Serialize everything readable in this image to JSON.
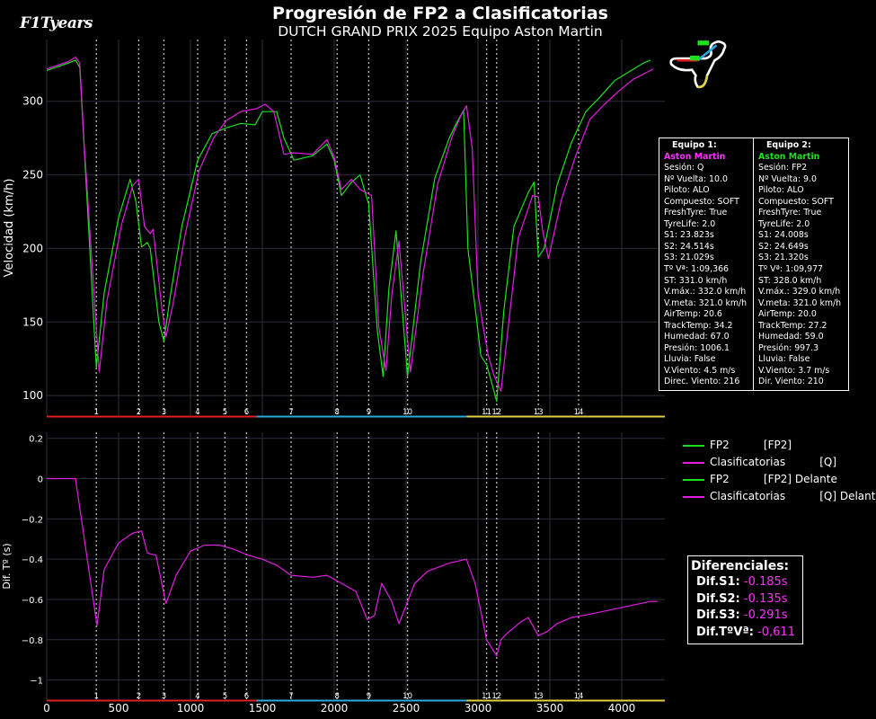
{
  "header": {
    "title": "Progresión de FP2 a Clasificatorias",
    "subtitle": "DUTCH GRAND PRIX 2025 Equipo Aston Martin",
    "logo_text": "F1Tyears"
  },
  "colors": {
    "fp2": "#1ee01e",
    "quali": "#e11de1",
    "sector1": "#e02020",
    "sector2": "#2aa8e0",
    "sector3": "#e0d040",
    "grid": "#2a2f3a",
    "corner_line": "#bbbbbb"
  },
  "corners": {
    "labels": [
      "1",
      "2",
      "3",
      "4",
      "5",
      "6",
      "7",
      "8",
      "9",
      "10",
      "11",
      "12",
      "13",
      "14"
    ],
    "distances": [
      345,
      640,
      815,
      1050,
      1240,
      1390,
      1700,
      2020,
      2240,
      2510,
      3060,
      3130,
      3420,
      3700
    ]
  },
  "sectors": {
    "s1_end": 1460,
    "s2_end": 2920
  },
  "info_team1": {
    "header": "Equipo 1:",
    "team": "Aston Martin",
    "lines": [
      "Sesión: Q",
      "Nº Vuelta: 10.0",
      "Piloto: ALO",
      "Compuesto: SOFT",
      "FreshTyre: True",
      "TyreLife: 2.0",
      "S1: 23.823s",
      "S2: 24.514s",
      "S3: 21.029s",
      "Tº Vª: 1:09,366",
      "ST: 331.0 km/h",
      "V.máx.: 332.0 km/h",
      "V.meta: 321.0 km/h",
      "AirTemp: 20.6",
      "TrackTemp: 34.2",
      "Humedad: 67.0",
      "Presión: 1006.1",
      "Lluvia: False",
      "V.Viento: 4.5 m/s",
      "Direc. Viento: 216"
    ]
  },
  "info_team2": {
    "header": "Equipo 2:",
    "team": "Aston Martin",
    "lines": [
      "Sesión: FP2",
      "Nº Vuelta: 9.0",
      "Piloto: ALO",
      "Compuesto: SOFT",
      "FreshTyre: True",
      "TyreLife: 2.0",
      "S1: 24.008s",
      "S2: 24.649s",
      "S3: 21.320s",
      "Tº Vª: 1:09,977",
      "ST: 328.0 km/h",
      "V.máx.: 329.0 km/h",
      "V.meta: 321.0 km/h",
      "AirTemp: 20.0",
      "TrackTemp: 27.2",
      "Humedad: 59.0",
      "Presión: 997.3",
      "Lluvia: False",
      "V.Viento: 3.7 m/s",
      "Dir. Viento: 210"
    ]
  },
  "legend": [
    {
      "label": "FP2          [FP2]",
      "color": "#1ee01e"
    },
    {
      "label": "Clasificatorias          [Q]",
      "color": "#e11de1"
    },
    {
      "label": "FP2          [FP2] Delante",
      "color": "#1ee01e"
    },
    {
      "label": "Clasificatorias          [Q] Delante",
      "color": "#e11de1"
    }
  ],
  "diferenciales": {
    "title": "Diferenciales:",
    "s1_label": "Dif.S1:",
    "s1_value": "-0.185s",
    "s2_label": "Dif.S2:",
    "s2_value": "-0.135s",
    "s3_label": "Dif.S3:",
    "s3_value": "-0.291s",
    "tv_label": "Dif.TºVª:",
    "tv_value": "-0,611"
  },
  "chart_data": [
    {
      "type": "line",
      "ylabel": "Velocidad (km/h)",
      "xlim": [
        0,
        4300
      ],
      "ylim": [
        86,
        342
      ],
      "yticks": [
        100,
        150,
        200,
        250,
        300
      ],
      "series": [
        {
          "name": "FP2",
          "x": [
            0,
            150,
            200,
            230,
            260,
            345,
            400,
            500,
            580,
            620,
            660,
            700,
            720,
            780,
            815,
            860,
            940,
            1050,
            1150,
            1250,
            1350,
            1450,
            1500,
            1600,
            1650,
            1720,
            1850,
            1950,
            2000,
            2050,
            2120,
            2180,
            2240,
            2300,
            2340,
            2380,
            2430,
            2510,
            2600,
            2700,
            2800,
            2850,
            2900,
            2930,
            2980,
            3020,
            3060,
            3100,
            3130,
            3180,
            3250,
            3350,
            3390,
            3420,
            3460,
            3550,
            3650,
            3750,
            3850,
            3950,
            4050,
            4150,
            4200
          ],
          "values": [
            321,
            326,
            328,
            323,
            270,
            119,
            170,
            221,
            247,
            232,
            201,
            204,
            200,
            150,
            137,
            168,
            215,
            260,
            278,
            282,
            285,
            284,
            293,
            293,
            275,
            260,
            263,
            271,
            260,
            236,
            245,
            250,
            230,
            144,
            113,
            172,
            212,
            113,
            190,
            248,
            275,
            285,
            294,
            200,
            160,
            127,
            121,
            107,
            96,
            158,
            215,
            238,
            245,
            194,
            200,
            243,
            272,
            293,
            303,
            314,
            320,
            326,
            328
          ]
        },
        {
          "name": "Clasificatorias",
          "x": [
            0,
            150,
            200,
            230,
            260,
            365,
            420,
            520,
            600,
            640,
            680,
            720,
            740,
            800,
            830,
            880,
            960,
            1060,
            1160,
            1250,
            1350,
            1460,
            1520,
            1580,
            1650,
            1720,
            1850,
            1950,
            2000,
            2050,
            2120,
            2180,
            2260,
            2310,
            2360,
            2400,
            2450,
            2530,
            2620,
            2720,
            2820,
            2880,
            2920,
            2960,
            3000,
            3030,
            3070,
            3110,
            3160,
            3210,
            3280,
            3380,
            3420,
            3450,
            3490,
            3580,
            3680,
            3780,
            3880,
            3980,
            4080,
            4180,
            4220
          ],
          "values": [
            322,
            327,
            330,
            326,
            272,
            116,
            165,
            216,
            243,
            247,
            215,
            210,
            213,
            160,
            140,
            163,
            208,
            253,
            275,
            287,
            293,
            295,
            298,
            293,
            264,
            265,
            264,
            274,
            262,
            240,
            247,
            240,
            236,
            147,
            117,
            168,
            205,
            116,
            184,
            244,
            276,
            290,
            297,
            268,
            170,
            150,
            128,
            114,
            103,
            146,
            207,
            236,
            235,
            212,
            193,
            233,
            263,
            288,
            298,
            307,
            315,
            320,
            322
          ]
        }
      ]
    },
    {
      "type": "line",
      "ylabel": "Dif. Tº (s)",
      "xlim": [
        0,
        4300
      ],
      "ylim": [
        -1.1,
        0.23
      ],
      "yticks": [
        -1,
        -0.8,
        -0.6,
        -0.4,
        -0.2,
        0,
        0.2
      ],
      "xticks": [
        0,
        500,
        1000,
        1500,
        2000,
        2500,
        3000,
        3500,
        4000
      ],
      "series": [
        {
          "name": "Clasificatorias [Q] Delante",
          "x": [
            0,
            200,
            350,
            400,
            500,
            600,
            660,
            700,
            760,
            800,
            830,
            900,
            1000,
            1100,
            1200,
            1300,
            1400,
            1500,
            1600,
            1700,
            1850,
            1950,
            2050,
            2150,
            2230,
            2280,
            2330,
            2400,
            2450,
            2500,
            2560,
            2650,
            2800,
            2920,
            2980,
            3060,
            3130,
            3160,
            3200,
            3300,
            3350,
            3420,
            3480,
            3550,
            3650,
            3800,
            4000,
            4200,
            4250
          ],
          "values": [
            0,
            0,
            -0.73,
            -0.45,
            -0.32,
            -0.27,
            -0.26,
            -0.37,
            -0.38,
            -0.52,
            -0.62,
            -0.48,
            -0.36,
            -0.33,
            -0.33,
            -0.35,
            -0.38,
            -0.4,
            -0.43,
            -0.48,
            -0.49,
            -0.48,
            -0.52,
            -0.56,
            -0.7,
            -0.68,
            -0.52,
            -0.61,
            -0.72,
            -0.63,
            -0.52,
            -0.46,
            -0.42,
            -0.4,
            -0.52,
            -0.8,
            -0.88,
            -0.8,
            -0.77,
            -0.71,
            -0.69,
            -0.78,
            -0.76,
            -0.72,
            -0.69,
            -0.67,
            -0.64,
            -0.61,
            -0.61
          ]
        }
      ]
    }
  ]
}
